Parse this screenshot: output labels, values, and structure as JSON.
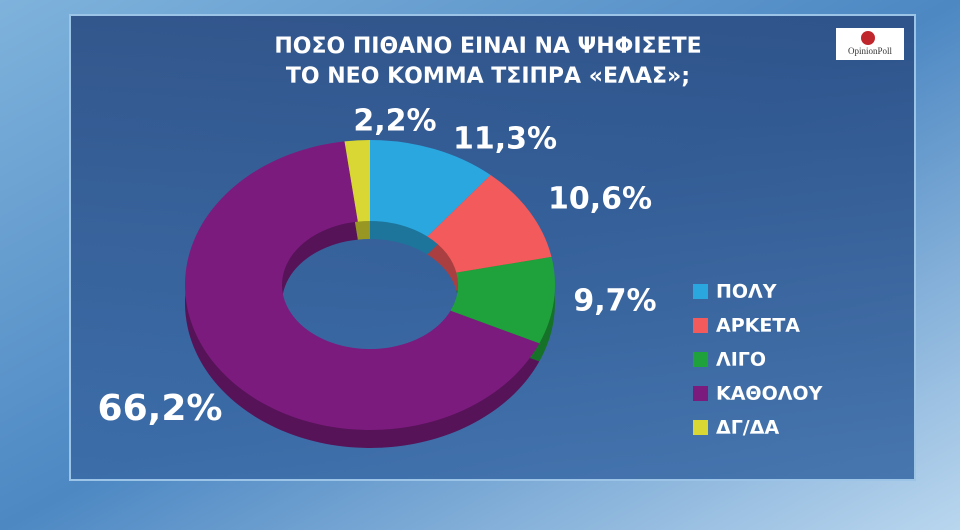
{
  "chart_data": {
    "type": "pie",
    "title": [
      "ΠΟΣΟ ΠΙΘΑΝΟ ΕΙΝΑΙ ΝΑ ΨΗΦΙΣΕΤΕ",
      "ΤΟ ΝΕΟ ΚΟΜΜΑ ΤΣΙΠΡΑ «ΕΛΑΣ»;"
    ],
    "source": "OpinionPoll",
    "categories": [
      "ΠΟΛΥ",
      "ΑΡΚΕΤΑ",
      "ΛΙΓΟ",
      "ΚΑΘΟΛΟΥ",
      "ΔΓ/ΔΑ"
    ],
    "values": [
      11.3,
      10.6,
      9.7,
      66.2,
      2.2
    ],
    "value_labels": [
      "11,3%",
      "10,6%",
      "9,7%",
      "66,2%",
      "2,2%"
    ],
    "colors": [
      "#2aa7df",
      "#f25a5c",
      "#1fa23b",
      "#7b1b7e",
      "#d9d733"
    ]
  }
}
